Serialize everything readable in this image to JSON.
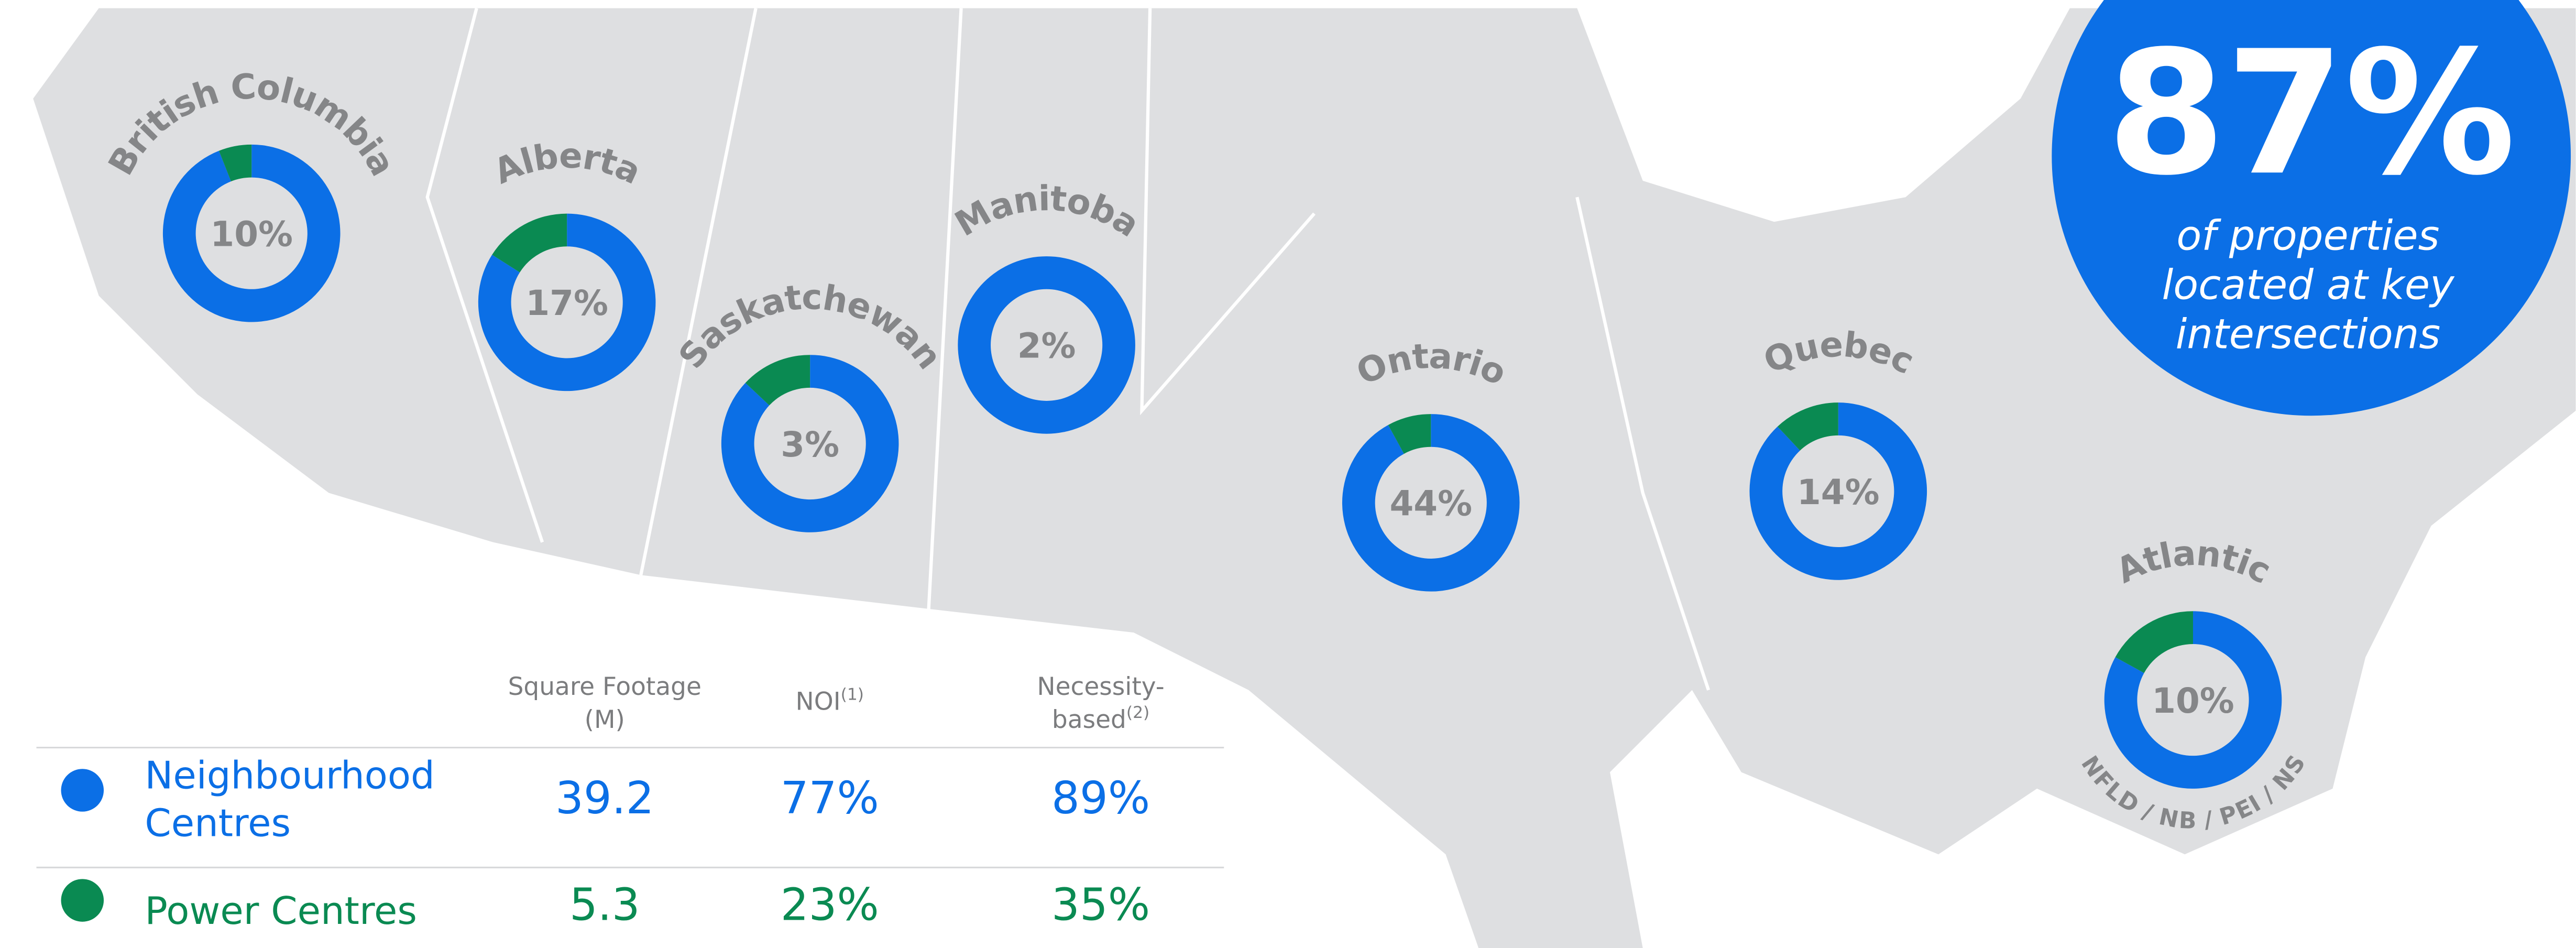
{
  "regions": [
    {
      "name": "British Columbia",
      "share_label": "10%",
      "values": [
        94,
        6
      ]
    },
    {
      "name": "Alberta",
      "share_label": "17%",
      "values": [
        84,
        16
      ]
    },
    {
      "name": "Saskatchewan",
      "share_label": "3%",
      "values": [
        87,
        13
      ]
    },
    {
      "name": "Manitoba",
      "share_label": "2%",
      "values": [
        100,
        0
      ]
    },
    {
      "name": "Ontario",
      "share_label": "44%",
      "values": [
        92,
        8
      ]
    },
    {
      "name": "Quebec",
      "share_label": "14%",
      "values": [
        88,
        12
      ]
    },
    {
      "name": "Atlantic",
      "share_label": "10%",
      "values": [
        83,
        17
      ],
      "subtitle": "NFLD / NB / PEI / NS"
    }
  ],
  "colors": [
    "#0b6fe6",
    "#0a8a52"
  ],
  "callout": {
    "value": "87%",
    "lines": [
      "of properties",
      "located at key",
      "intersections"
    ]
  },
  "table": {
    "headers": [
      {
        "lines": [
          "Square Footage",
          "(M)"
        ]
      },
      {
        "lines": [
          "NOI"
        ],
        "note": "(1)"
      },
      {
        "lines": [
          "Necessity-",
          "based"
        ],
        "note": "(2)"
      }
    ],
    "rows": [
      {
        "name_lines": [
          "Neighbourhood",
          "Centres"
        ],
        "cells": [
          "39.2",
          "77%",
          "89%"
        ]
      },
      {
        "name_lines": [
          "Power Centres"
        ],
        "cells": [
          "5.3",
          "23%",
          "35%"
        ]
      }
    ]
  }
}
